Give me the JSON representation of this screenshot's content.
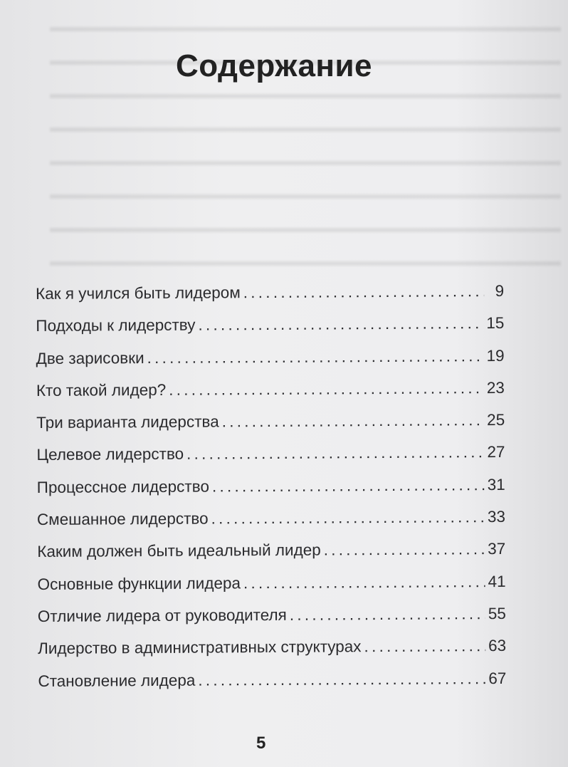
{
  "title": "Содержание",
  "entries": [
    {
      "label": "Как я учился быть лидером",
      "page": "9"
    },
    {
      "label": "Подходы к лидерству",
      "page": "15"
    },
    {
      "label": "Две зарисовки",
      "page": "19"
    },
    {
      "label": "Кто такой лидер?",
      "page": "23"
    },
    {
      "label": "Три варианта лидерства",
      "page": "25"
    },
    {
      "label": "Целевое лидерство",
      "page": "27"
    },
    {
      "label": "Процессное лидерство",
      "page": "31"
    },
    {
      "label": "Смешанное лидерство",
      "page": "33"
    },
    {
      "label": "Каким должен быть идеальный лидер",
      "page": "37"
    },
    {
      "label": "Основные функции лидера",
      "page": "41"
    },
    {
      "label": "Отличие лидера от руководителя",
      "page": "55"
    },
    {
      "label": "Лидерство в административных структурах",
      "page": "63"
    },
    {
      "label": "Становление лидера",
      "page": "67"
    }
  ],
  "page_number": "5"
}
